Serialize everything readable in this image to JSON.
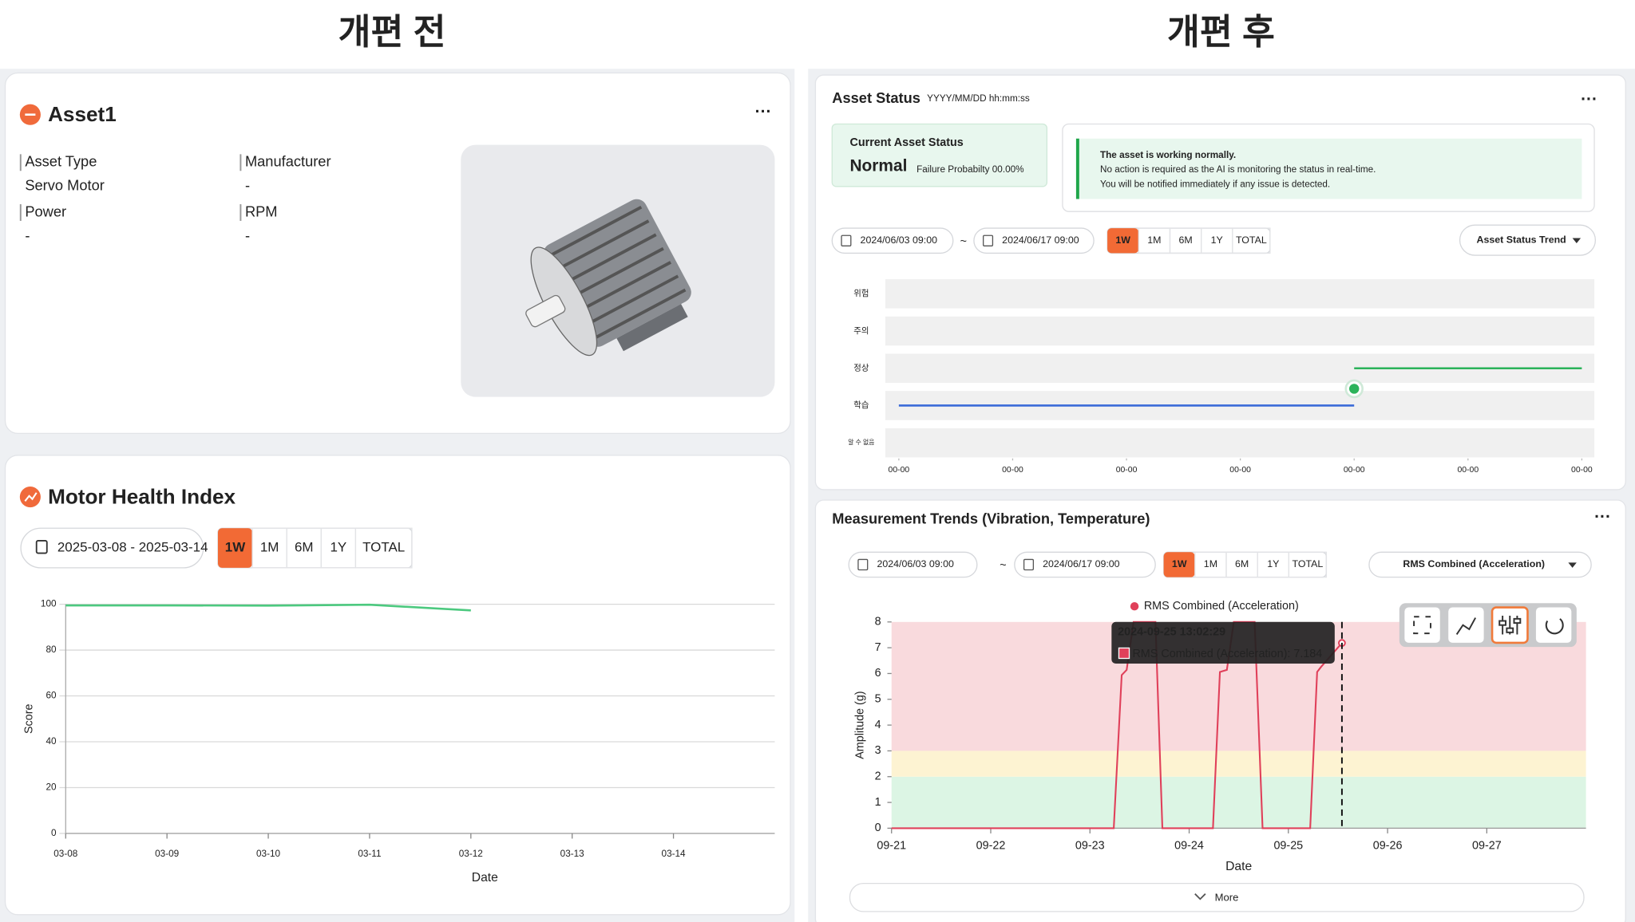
{
  "headings": {
    "before": "개편 전",
    "after": "개편 후"
  },
  "before": {
    "asset": {
      "title": "Asset1",
      "fields": [
        {
          "label": "Asset Type",
          "value": "Servo Motor"
        },
        {
          "label": "Manufacturer",
          "value": "-"
        },
        {
          "label": "Power",
          "value": "-"
        },
        {
          "label": "RPM",
          "value": "-"
        }
      ]
    },
    "health": {
      "title": "Motor Health Index",
      "date_range": "2025-03-08 - 2025-03-14",
      "periods": [
        "1W",
        "1M",
        "6M",
        "1Y",
        "TOTAL"
      ],
      "active_period": 0,
      "chart_data": {
        "type": "line",
        "x_label": "Date",
        "y_label": "Score",
        "categories": [
          "03-08",
          "03-09",
          "03-10",
          "03-11",
          "03-12",
          "03-13",
          "03-14"
        ],
        "values": [
          99.5,
          99.5,
          99.4,
          99.8,
          97.3,
          null,
          null
        ],
        "color": "#4cc97f",
        "ylim": [
          0,
          100
        ],
        "yticks": [
          0,
          20,
          40,
          60,
          80,
          100
        ],
        "grid": true
      }
    }
  },
  "after": {
    "status": {
      "title": "Asset Status",
      "timestamp": "YYYY/MM/DD hh:mm:ss",
      "current_label": "Current Asset Status",
      "status": "Normal",
      "probability": "Failure Probabilty 00.00%",
      "message": [
        "The asset is working normally.",
        "No action is required as the AI is monitoring the status in real-time.",
        "You will be notified immediately if any issue is detected."
      ],
      "date_from": "2024/06/03 09:00",
      "range_separator": "~",
      "date_to": "2024/06/17 09:00",
      "periods": [
        "1W",
        "1M",
        "6M",
        "1Y",
        "TOTAL"
      ],
      "active_period": 0,
      "dropdown": "Asset Status Trend",
      "chart_data": {
        "type": "step",
        "levels": [
          "알 수 없음",
          "학습",
          "정상",
          "주의",
          "위험"
        ],
        "xlim": [
          0,
          6
        ],
        "xticks": [
          {
            "value": 0,
            "label": "00-00"
          },
          {
            "value": 1,
            "label": "00-00"
          },
          {
            "value": 2,
            "label": "00-00"
          },
          {
            "value": 3,
            "label": "00-00"
          },
          {
            "value": 4,
            "label": "00-00"
          },
          {
            "value": 5,
            "label": "00-00"
          },
          {
            "value": 6,
            "label": "00-00"
          }
        ],
        "series": [
          {
            "color": "#3a6ad8",
            "x": [
              0,
              4
            ],
            "values": [
              1,
              1
            ]
          },
          {
            "color": "#2bb35a",
            "x": [
              4,
              6
            ],
            "values": [
              2,
              2
            ]
          }
        ],
        "marker": {
          "x": 4,
          "value": 1.45,
          "color": "#2bb35a"
        }
      }
    },
    "trends": {
      "title": "Measurement Trends (Vibration, Temperature)",
      "date_from": "2024/06/03 09:00",
      "range_separator": "~",
      "date_to": "2024/06/17 09:00",
      "periods": [
        "1W",
        "1M",
        "6M",
        "1Y",
        "TOTAL"
      ],
      "active_period": 0,
      "dropdown": "RMS Combined (Acceleration)",
      "chart_data": {
        "type": "line",
        "x_label": "Date",
        "y_label": "Amplitude (g)",
        "series": [
          {
            "name": "RMS Combined (Acceleration)",
            "color": "#e0405a",
            "x": [
              21,
              23.24,
              23.32,
              23.37,
              23.44,
              23.66,
              23.73,
              24.24,
              24.31,
              24.38,
              24.45,
              24.64,
              24.66,
              24.74,
              25.22,
              25.29,
              25.33,
              25.54
            ],
            "values": [
              0,
              0,
              5.94,
              6.14,
              8,
              8,
              0,
              0,
              6.06,
              6.14,
              8,
              8,
              8,
              0,
              0,
              6.06,
              6.26,
              7.184
            ]
          }
        ],
        "xlim": [
          21,
          28
        ],
        "xticks": [
          {
            "value": 21,
            "label": "09-21"
          },
          {
            "value": 22,
            "label": "09-22"
          },
          {
            "value": 23,
            "label": "09-23"
          },
          {
            "value": 24,
            "label": "09-24"
          },
          {
            "value": 25,
            "label": "09-25"
          },
          {
            "value": 26,
            "label": "09-26"
          },
          {
            "value": 27,
            "label": "09-27"
          }
        ],
        "ylim": [
          0,
          8
        ],
        "yticks": [
          0,
          1,
          2,
          3,
          4,
          5,
          6,
          7,
          8
        ],
        "bands": [
          {
            "from": 0,
            "to": 2,
            "color": "#dcf5e4"
          },
          {
            "from": 2,
            "to": 3,
            "color": "#fdf3d2"
          },
          {
            "from": 3,
            "to": 8,
            "color": "#f9dadd"
          }
        ],
        "cursor": {
          "x": 25.54,
          "time": "2024-09-25 13:02:29",
          "label": "RMS Combined (Acceleration): 7.184"
        }
      },
      "more": "More"
    }
  }
}
